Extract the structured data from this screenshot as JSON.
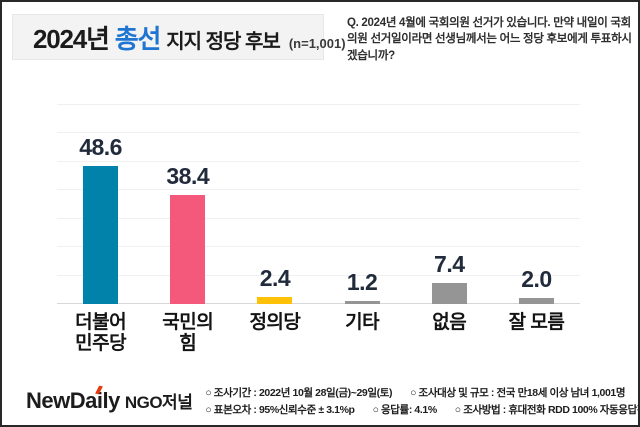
{
  "title": {
    "prefix": "2024년",
    "highlight": "총선",
    "suffix": "지지 정당 후보",
    "sample": "(n=1,001)"
  },
  "question": "Q. 2024년 4월에 국회의원 선거가 있습니다. 만약 내일이 국회의원 선거일이라면 선생님께서는 어느 정당 후보에게 투표하시겠습니까?",
  "chart_data": {
    "type": "bar",
    "title": "2024년 총선 지지 정당 후보 (n=1,001)",
    "categories": [
      "더불어 민주당",
      "국민의 힘",
      "정의당",
      "기타",
      "없음",
      "잘 모름"
    ],
    "category_lines": [
      [
        "더불어",
        "민주당"
      ],
      [
        "국민의",
        "힘"
      ],
      [
        "정의당"
      ],
      [
        "기타"
      ],
      [
        "없음"
      ],
      [
        "잘 모름"
      ]
    ],
    "values": [
      48.6,
      38.4,
      2.4,
      1.2,
      7.4,
      2.0
    ],
    "value_labels": [
      "48.6",
      "38.4",
      "2.4",
      "1.2",
      "7.4",
      "2.0"
    ],
    "bar_colors": [
      "#0082AB",
      "#F4597B",
      "#FFC107",
      "#959595",
      "#959595",
      "#959595"
    ],
    "xlabel": "",
    "ylabel": "",
    "ylim": [
      0,
      70
    ],
    "grid_step": 10,
    "grid": true,
    "legend": "none",
    "value_label_color": "#212B3B"
  },
  "footer": {
    "brand": "NewDaily",
    "journal": "NGO저널",
    "info_line1": [
      "○ 조사기간 : 2022년 10월 28일(금)~29일(토)",
      "○ 조사대상 및 규모 : 전국 만18세 이상 남녀 1,001명"
    ],
    "info_line2": [
      "○ 표본오차 : 95%신뢰수준 ± 3.1%p",
      "○ 응답률: 4.1%",
      "○ 조사방법 : 휴대전화 RDD 100% 자동응답전화조사"
    ]
  },
  "colors": {
    "title_highlight_blue": "#1E76D2",
    "brand_accent_red": "#E8380D",
    "bar_blue": "#0082AB",
    "bar_pink": "#F4597B",
    "bar_yellow": "#FFC107",
    "bar_gray": "#959595"
  }
}
